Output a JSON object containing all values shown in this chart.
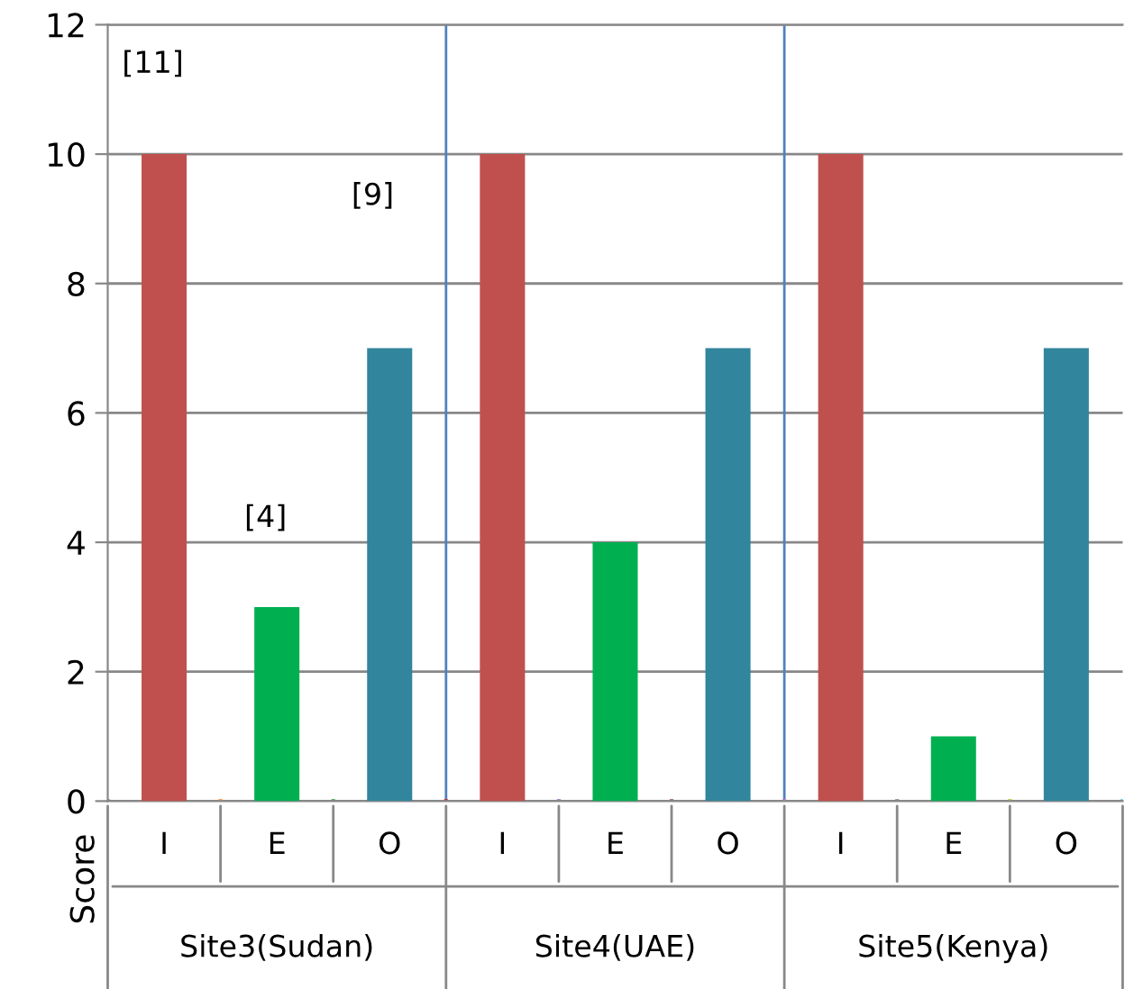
{
  "chart_data": {
    "type": "bar",
    "ylabel": "Score",
    "categories": [
      "I",
      "E",
      "O",
      "I",
      "E",
      "O",
      "I",
      "E",
      "O"
    ],
    "values": [
      10,
      3,
      7,
      10,
      4,
      7,
      10,
      1,
      7
    ],
    "colors": [
      "#c0504d",
      "#00b050",
      "#31859c",
      "#c0504d",
      "#00b050",
      "#31859c",
      "#c0504d",
      "#00b050",
      "#31859c"
    ],
    "ylim": [
      0,
      12
    ],
    "yticks": [
      0,
      2,
      4,
      6,
      8,
      10,
      12
    ],
    "grid": "y",
    "annotations": [
      "[11]",
      "[9]",
      "[4]",
      "Site3(Sudan)",
      "Site4(UAE)",
      "Site5(Kenya)"
    ]
  }
}
